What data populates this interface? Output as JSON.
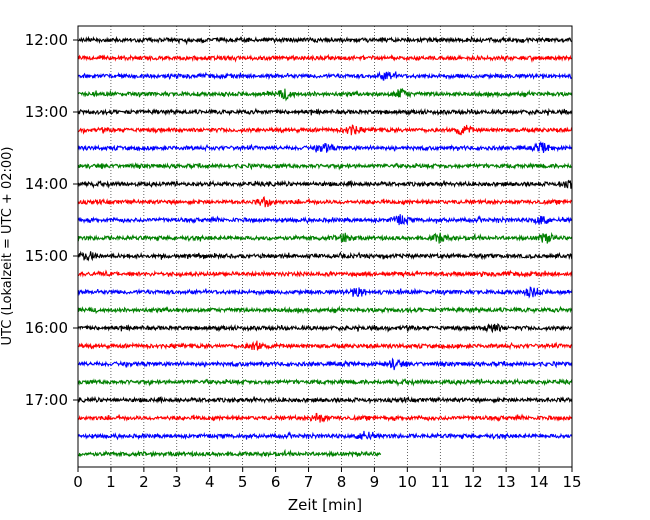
{
  "chart_data": {
    "type": "line",
    "title": "",
    "xlabel": "Zeit  [min]",
    "ylabel": "UTC (Lokalzeit = UTC + 02:00)",
    "xlim": [
      0,
      15
    ],
    "x_ticks": [
      "0",
      "1",
      "2",
      "3",
      "4",
      "5",
      "6",
      "7",
      "8",
      "9",
      "10",
      "11",
      "12",
      "13",
      "14",
      "15"
    ],
    "y_ticks": [
      "12:00",
      "13:00",
      "14:00",
      "15:00",
      "16:00",
      "17:00"
    ],
    "grid": "vertical dotted lines at each minute",
    "trace_interval_minutes": 15,
    "start_time": "12:00",
    "trace_colors": [
      "#000000",
      "#ff0000",
      "#0000ff",
      "#008000"
    ],
    "traces": [
      {
        "start": "12:00",
        "duration_min": 15,
        "events": []
      },
      {
        "start": "12:15",
        "duration_min": 15,
        "events": []
      },
      {
        "start": "12:30",
        "duration_min": 15,
        "events": [
          9.4
        ]
      },
      {
        "start": "12:45",
        "duration_min": 15,
        "events": [
          6.3,
          9.8
        ]
      },
      {
        "start": "13:00",
        "duration_min": 15,
        "events": []
      },
      {
        "start": "13:15",
        "duration_min": 15,
        "events": [
          8.3,
          11.7
        ]
      },
      {
        "start": "13:30",
        "duration_min": 15,
        "events": [
          7.5,
          14.1
        ]
      },
      {
        "start": "13:45",
        "duration_min": 15,
        "events": []
      },
      {
        "start": "14:00",
        "duration_min": 15,
        "events": [
          14.9
        ]
      },
      {
        "start": "14:15",
        "duration_min": 15,
        "events": [
          5.7
        ]
      },
      {
        "start": "14:30",
        "duration_min": 15,
        "events": [
          9.8,
          14.1
        ]
      },
      {
        "start": "14:45",
        "duration_min": 15,
        "events": [
          8.1,
          11.0,
          14.2
        ]
      },
      {
        "start": "15:00",
        "duration_min": 15,
        "events": [
          0.3
        ]
      },
      {
        "start": "15:15",
        "duration_min": 15,
        "events": []
      },
      {
        "start": "15:30",
        "duration_min": 15,
        "events": [
          8.5,
          13.8
        ]
      },
      {
        "start": "15:45",
        "duration_min": 15,
        "events": []
      },
      {
        "start": "16:00",
        "duration_min": 15,
        "events": [
          12.6
        ]
      },
      {
        "start": "16:15",
        "duration_min": 15,
        "events": [
          5.4
        ]
      },
      {
        "start": "16:30",
        "duration_min": 15,
        "events": [
          9.6
        ]
      },
      {
        "start": "16:45",
        "duration_min": 15,
        "events": []
      },
      {
        "start": "17:00",
        "duration_min": 15,
        "events": []
      },
      {
        "start": "17:15",
        "duration_min": 15,
        "events": [
          7.3
        ]
      },
      {
        "start": "17:30",
        "duration_min": 15,
        "events": [
          8.7
        ]
      },
      {
        "start": "17:45",
        "duration_min": 9.2,
        "events": []
      }
    ]
  }
}
